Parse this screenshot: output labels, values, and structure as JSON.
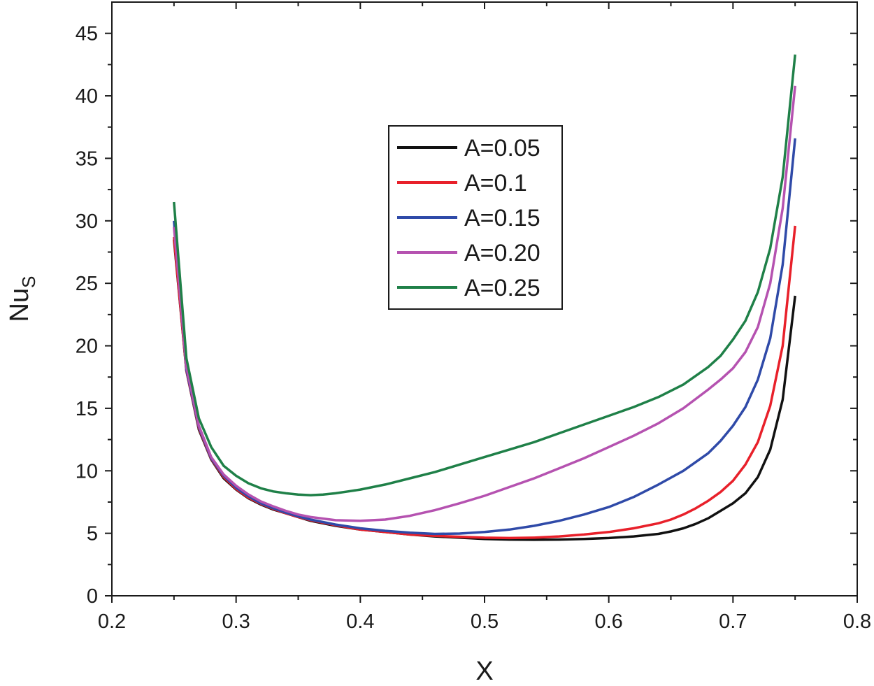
{
  "chart_data": {
    "type": "line",
    "title": "",
    "xlabel": "X",
    "ylabel": "Nu",
    "ylabel_subscript": "S",
    "xlim": [
      0.2,
      0.8
    ],
    "ylim": [
      0,
      47.5
    ],
    "xticks": [
      0.2,
      0.3,
      0.4,
      0.5,
      0.6,
      0.7,
      0.8
    ],
    "xtick_labels": [
      "0.2",
      "0.3",
      "0.4",
      "0.5",
      "0.6",
      "0.7",
      "0.8"
    ],
    "yticks": [
      0,
      5,
      10,
      15,
      20,
      25,
      30,
      35,
      40,
      45
    ],
    "ytick_labels": [
      "0",
      "5",
      "10",
      "15",
      "20",
      "25",
      "30",
      "35",
      "40",
      "45"
    ],
    "grid": false,
    "legend_position": "upper-center",
    "series": [
      {
        "name": "A=0.05",
        "color": "#111111",
        "x": [
          0.25,
          0.26,
          0.27,
          0.28,
          0.29,
          0.3,
          0.31,
          0.32,
          0.33,
          0.34,
          0.35,
          0.36,
          0.38,
          0.4,
          0.42,
          0.44,
          0.46,
          0.48,
          0.5,
          0.52,
          0.54,
          0.56,
          0.58,
          0.6,
          0.62,
          0.64,
          0.65,
          0.66,
          0.67,
          0.68,
          0.69,
          0.7,
          0.71,
          0.72,
          0.73,
          0.74,
          0.75
        ],
        "y": [
          28.5,
          18.0,
          13.3,
          10.9,
          9.4,
          8.5,
          7.8,
          7.3,
          6.9,
          6.6,
          6.3,
          6.0,
          5.6,
          5.3,
          5.1,
          4.9,
          4.75,
          4.65,
          4.55,
          4.5,
          4.48,
          4.5,
          4.55,
          4.62,
          4.75,
          4.95,
          5.15,
          5.4,
          5.75,
          6.2,
          6.8,
          7.4,
          8.2,
          9.5,
          11.7,
          15.7,
          24.0
        ]
      },
      {
        "name": "A=0.1",
        "color": "#e8202a",
        "x": [
          0.25,
          0.26,
          0.27,
          0.28,
          0.29,
          0.3,
          0.31,
          0.32,
          0.33,
          0.34,
          0.35,
          0.36,
          0.38,
          0.4,
          0.42,
          0.44,
          0.46,
          0.48,
          0.5,
          0.52,
          0.54,
          0.56,
          0.58,
          0.6,
          0.62,
          0.64,
          0.65,
          0.66,
          0.67,
          0.68,
          0.69,
          0.7,
          0.71,
          0.72,
          0.73,
          0.74,
          0.75
        ],
        "y": [
          28.7,
          18.0,
          13.4,
          10.95,
          9.5,
          8.55,
          7.85,
          7.35,
          6.95,
          6.6,
          6.3,
          6.05,
          5.65,
          5.3,
          5.1,
          4.9,
          4.8,
          4.72,
          4.65,
          4.62,
          4.65,
          4.75,
          4.9,
          5.1,
          5.4,
          5.8,
          6.1,
          6.5,
          7.0,
          7.6,
          8.3,
          9.2,
          10.5,
          12.3,
          15.2,
          20.0,
          29.6
        ]
      },
      {
        "name": "A=0.15",
        "color": "#2f4aa8",
        "x": [
          0.25,
          0.26,
          0.27,
          0.28,
          0.29,
          0.3,
          0.31,
          0.32,
          0.33,
          0.34,
          0.35,
          0.36,
          0.38,
          0.4,
          0.42,
          0.44,
          0.46,
          0.48,
          0.5,
          0.52,
          0.54,
          0.56,
          0.58,
          0.6,
          0.62,
          0.64,
          0.66,
          0.68,
          0.69,
          0.7,
          0.71,
          0.72,
          0.73,
          0.74,
          0.75
        ],
        "y": [
          30.0,
          18.1,
          13.5,
          11.0,
          9.6,
          8.65,
          7.95,
          7.4,
          7.0,
          6.65,
          6.35,
          6.1,
          5.7,
          5.4,
          5.2,
          5.05,
          4.95,
          4.98,
          5.1,
          5.3,
          5.6,
          6.0,
          6.5,
          7.1,
          7.9,
          8.9,
          10.0,
          11.4,
          12.4,
          13.6,
          15.1,
          17.3,
          20.6,
          26.5,
          36.6
        ]
      },
      {
        "name": "A=0.20",
        "color": "#b552b0",
        "x": [
          0.25,
          0.26,
          0.27,
          0.28,
          0.29,
          0.3,
          0.31,
          0.32,
          0.33,
          0.34,
          0.35,
          0.36,
          0.38,
          0.4,
          0.42,
          0.44,
          0.46,
          0.48,
          0.5,
          0.52,
          0.54,
          0.56,
          0.58,
          0.6,
          0.62,
          0.64,
          0.66,
          0.68,
          0.69,
          0.7,
          0.71,
          0.72,
          0.73,
          0.74,
          0.75
        ],
        "y": [
          29.5,
          18.3,
          13.6,
          11.1,
          9.7,
          8.8,
          8.1,
          7.55,
          7.15,
          6.8,
          6.5,
          6.3,
          6.05,
          6.0,
          6.1,
          6.4,
          6.85,
          7.4,
          8.0,
          8.7,
          9.4,
          10.2,
          11.0,
          11.9,
          12.8,
          13.8,
          15.0,
          16.5,
          17.3,
          18.2,
          19.5,
          21.5,
          25.0,
          31.0,
          40.8
        ]
      },
      {
        "name": "A=0.25",
        "color": "#1f8048",
        "x": [
          0.25,
          0.26,
          0.27,
          0.28,
          0.29,
          0.3,
          0.31,
          0.32,
          0.33,
          0.34,
          0.35,
          0.36,
          0.37,
          0.38,
          0.39,
          0.4,
          0.42,
          0.44,
          0.46,
          0.48,
          0.5,
          0.52,
          0.54,
          0.56,
          0.58,
          0.6,
          0.62,
          0.64,
          0.66,
          0.68,
          0.69,
          0.7,
          0.71,
          0.72,
          0.73,
          0.74,
          0.75
        ],
        "y": [
          31.5,
          19.0,
          14.2,
          11.9,
          10.4,
          9.6,
          9.0,
          8.6,
          8.35,
          8.2,
          8.1,
          8.05,
          8.1,
          8.2,
          8.35,
          8.5,
          8.9,
          9.4,
          9.9,
          10.5,
          11.1,
          11.7,
          12.3,
          13.0,
          13.7,
          14.4,
          15.1,
          15.9,
          16.9,
          18.3,
          19.2,
          20.5,
          22.0,
          24.3,
          27.8,
          33.5,
          43.3
        ]
      }
    ]
  }
}
